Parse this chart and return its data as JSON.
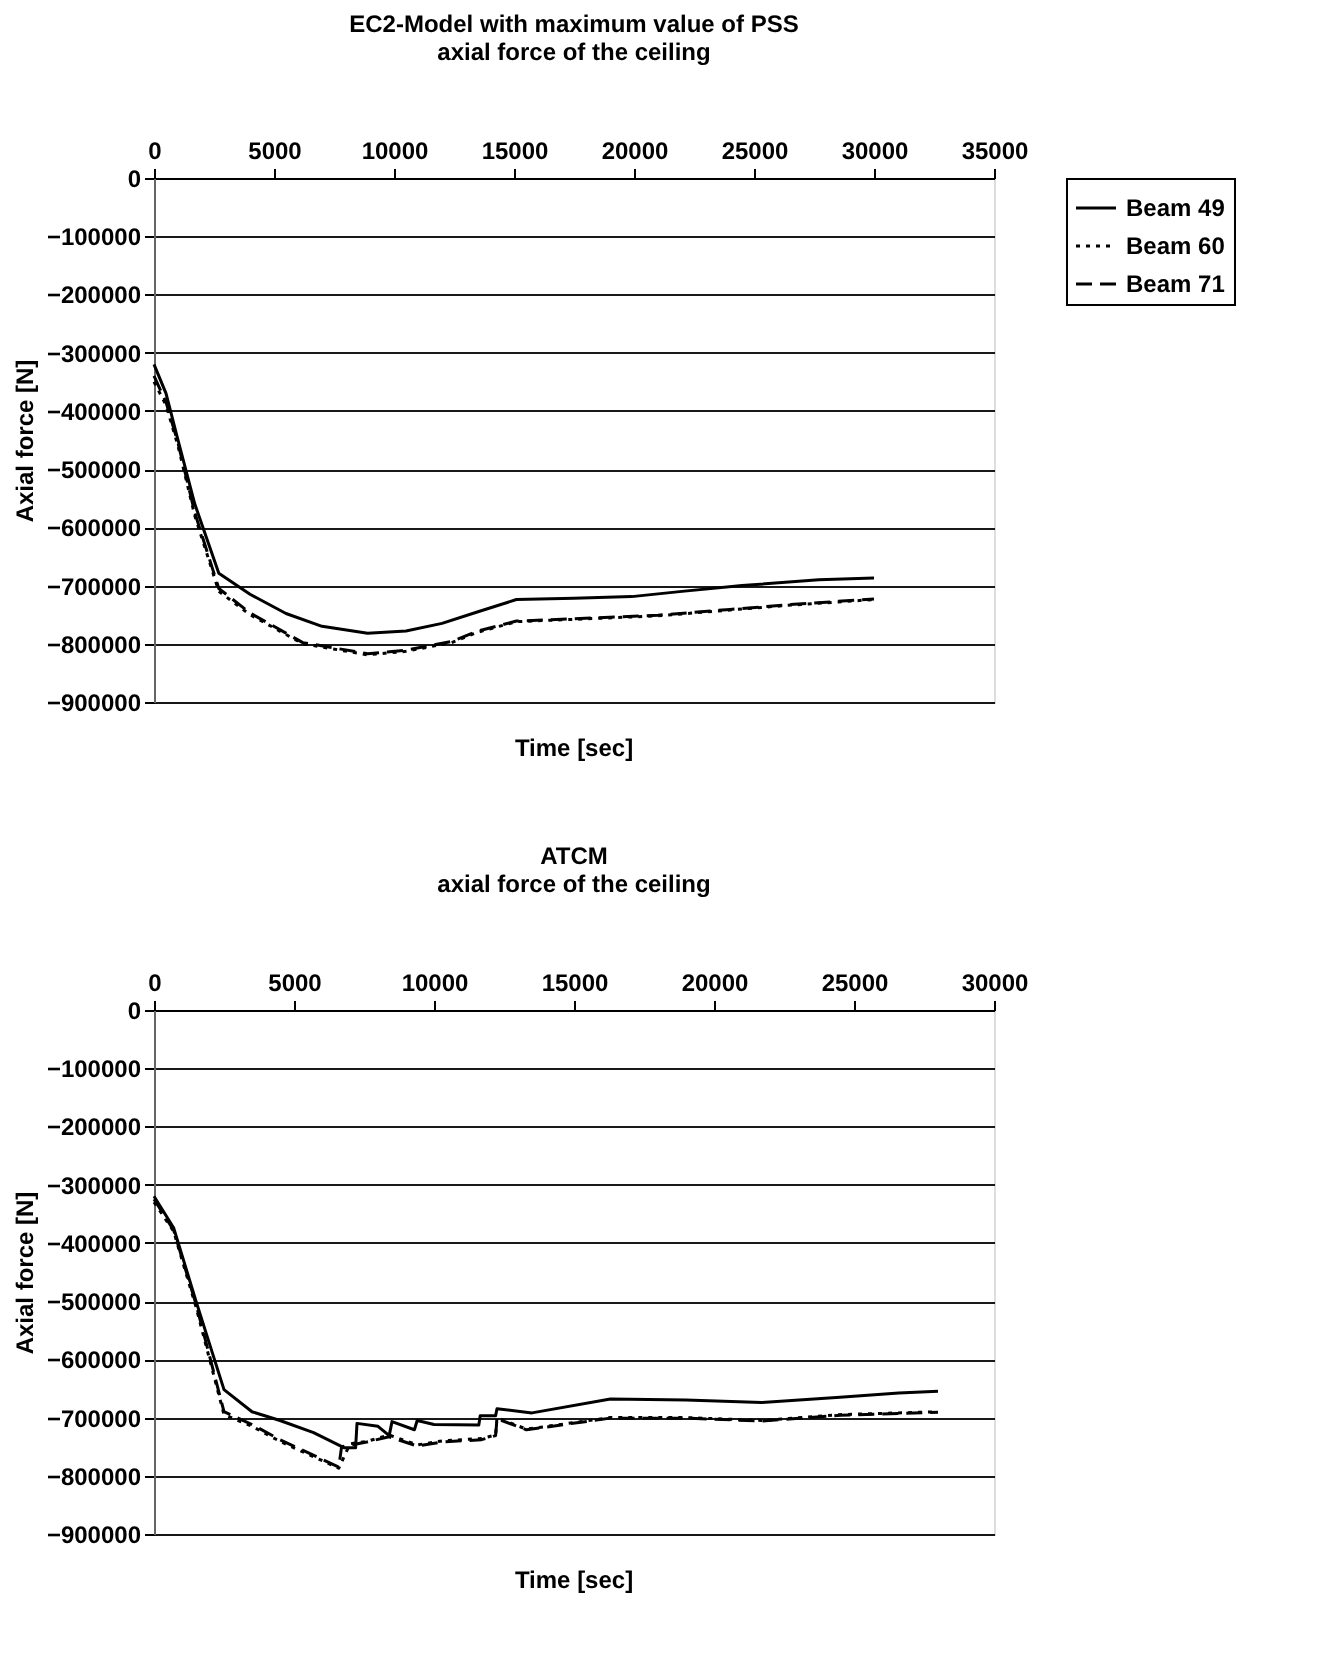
{
  "chart_data": [
    {
      "type": "line",
      "title": "EC2-Model with maximum value of PSS",
      "subtitle": "axial force of the ceiling",
      "xlabel": "Time [sec]",
      "ylabel": "Axial force [N]",
      "xlim": [
        0,
        35000
      ],
      "xticks": [
        0,
        5000,
        10000,
        15000,
        20000,
        25000,
        30000,
        35000
      ],
      "ylim": [
        -900000,
        0
      ],
      "yticks": [
        0,
        -100000,
        -200000,
        -300000,
        -400000,
        -500000,
        -600000,
        -700000,
        -800000,
        -900000
      ],
      "grid": "y",
      "legend": "right",
      "marker": "none",
      "series": [
        {
          "name": "Beam 49",
          "color": "#000000",
          "line_style": "solid",
          "x": [
            0,
            500,
            1000,
            1700,
            2700,
            4000,
            5500,
            7000,
            8900,
            10500,
            12000,
            13500,
            15100,
            17500,
            19900,
            22000,
            24500,
            27700,
            30000
          ],
          "values": [
            -320000,
            -370000,
            -450000,
            -560000,
            -679000,
            -715000,
            -748000,
            -770000,
            -782000,
            -778000,
            -765000,
            -745000,
            -724000,
            -722000,
            -719000,
            -710000,
            -700000,
            -690000,
            -687000
          ]
        },
        {
          "name": "Beam 60",
          "color": "#000000",
          "line_style": "dotted",
          "x": [
            0,
            500,
            1000,
            1700,
            2700,
            4000,
            6200,
            8900,
            10500,
            12400,
            13500,
            15100,
            17500,
            21000,
            24000,
            26400,
            30000
          ],
          "values": [
            -350000,
            -390000,
            -460000,
            -580000,
            -710000,
            -750000,
            -800000,
            -819000,
            -813000,
            -798000,
            -780000,
            -762000,
            -758000,
            -752000,
            -742000,
            -734000,
            -724000
          ]
        },
        {
          "name": "Beam 71",
          "color": "#000000",
          "line_style": "dashed",
          "x": [
            0,
            500,
            1000,
            1700,
            2700,
            4000,
            6200,
            8900,
            10500,
            12400,
            13500,
            15100,
            17500,
            21000,
            24000,
            26400,
            30000
          ],
          "values": [
            -340000,
            -385000,
            -455000,
            -575000,
            -705000,
            -747000,
            -798000,
            -817000,
            -811000,
            -796000,
            -778000,
            -761000,
            -757000,
            -751000,
            -741000,
            -733000,
            -723000
          ]
        }
      ]
    },
    {
      "type": "line",
      "title": "ATCM",
      "subtitle": "axial force of the ceiling",
      "xlabel": "Time [sec]",
      "ylabel": "Axial force [N]",
      "xlim": [
        0,
        30000
      ],
      "xticks": [
        0,
        5000,
        10000,
        15000,
        20000,
        25000,
        30000
      ],
      "ylim": [
        -900000,
        0
      ],
      "yticks": [
        0,
        -100000,
        -200000,
        -300000,
        -400000,
        -500000,
        -600000,
        -700000,
        -800000,
        -900000
      ],
      "grid": "y",
      "legend": "right",
      "marker": "none",
      "series": [
        {
          "name": "Beam 49",
          "color": "#000000",
          "line_style": "solid",
          "x": [
            0,
            700,
            1500,
            2500,
            3500,
            4500,
            5700,
            6800,
            7200,
            7250,
            8000,
            8400,
            8500,
            9300,
            9400,
            10000,
            11600,
            11650,
            12200,
            12250,
            13500,
            16300,
            19000,
            21700,
            24500,
            26600,
            28000
          ],
          "values": [
            -320000,
            -374000,
            -500000,
            -652000,
            -690000,
            -705000,
            -726000,
            -752000,
            -752000,
            -710000,
            -715000,
            -731000,
            -707000,
            -721000,
            -705000,
            -712000,
            -713000,
            -697000,
            -697000,
            -685000,
            -692000,
            -668000,
            -670000,
            -674000,
            -665000,
            -658000,
            -655000
          ]
        },
        {
          "name": "Beam 60",
          "color": "#000000",
          "line_style": "dotted",
          "x": [
            0,
            700,
            1500,
            2500,
            3500,
            4500,
            6600,
            7000,
            7600,
            8400,
            9400,
            10300,
            11700,
            12200,
            12250,
            13300,
            16300,
            19000,
            21700,
            24500,
            28000
          ],
          "values": [
            -330000,
            -380000,
            -510000,
            -695000,
            -715000,
            -741000,
            -787000,
            -745000,
            -741000,
            -730000,
            -747000,
            -740000,
            -736000,
            -730000,
            -700000,
            -720000,
            -700000,
            -700000,
            -705000,
            -695000,
            -690000
          ]
        },
        {
          "name": "Beam 71",
          "color": "#000000",
          "line_style": "dashed",
          "x": [
            0,
            700,
            1500,
            2500,
            3500,
            4500,
            6600,
            6700,
            7600,
            8400,
            9400,
            10300,
            11700,
            12200,
            12250,
            13300,
            16300,
            19000,
            21700,
            24500,
            28000
          ],
          "values": [
            -325000,
            -378000,
            -505000,
            -690000,
            -712000,
            -738000,
            -785000,
            -750000,
            -742000,
            -733000,
            -749000,
            -742000,
            -738000,
            -731000,
            -702000,
            -721000,
            -701000,
            -701000,
            -706000,
            -696000,
            -691000
          ]
        }
      ]
    }
  ]
}
